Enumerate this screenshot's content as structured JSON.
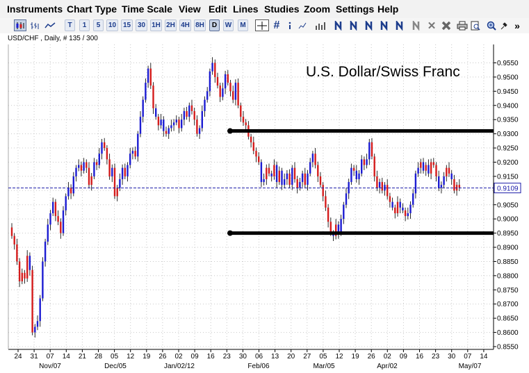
{
  "menu": [
    "Instruments",
    "Chart Type",
    "Time Scale",
    "View",
    "Edit",
    "Lines",
    "Studies",
    "Zoom",
    "Settings",
    "Help"
  ],
  "toolbar": {
    "timeframes": [
      "T",
      "1",
      "5",
      "10",
      "15",
      "30",
      "1H",
      "2H",
      "4H",
      "8H",
      "D",
      "W",
      "M"
    ],
    "active_timeframe": "D",
    "more": "»",
    "icons": [
      "candlestick-chart-icon",
      "bar-chart-icon",
      "line-chart-icon",
      "crosshair-icon",
      "grid-icon",
      "info-icon",
      "volume-icon",
      "draw-line-icon",
      "delete-icon",
      "print-icon",
      "print-preview-icon",
      "zoom-icon",
      "pin-icon"
    ]
  },
  "status": {
    "label": "USD/CHF , Daily, # 135 / 300"
  },
  "chart_data": {
    "type": "candlestick",
    "title": "U.S. Dollar/Swiss Franc",
    "colors": {
      "up": "#1c1cd2",
      "down": "#d41c1c",
      "wick": "#111111",
      "grid": "#c8c8c8",
      "axis": "#000000",
      "level": "#000000",
      "last_price": "#1a1aa8"
    },
    "yrange": [
      0.854,
      0.96
    ],
    "yticks": [
      "0.9550",
      "0.9500",
      "0.9450",
      "0.9400",
      "0.9350",
      "0.9300",
      "0.9250",
      "0.9200",
      "0.9150",
      "0.9100",
      "0.9050",
      "0.9000",
      "0.8950",
      "0.8900",
      "0.8850",
      "0.8800",
      "0.8750",
      "0.8700",
      "0.8650",
      "0.8600",
      "0.8550"
    ],
    "day_ticks": [
      "24",
      "31",
      "07",
      "14",
      "21",
      "28",
      "05",
      "12",
      "19",
      "26",
      "02",
      "09",
      "16",
      "23",
      "30",
      "06",
      "13",
      "20",
      "27",
      "05",
      "12",
      "19",
      "26",
      "02",
      "09",
      "16",
      "23",
      "30",
      "07",
      "14"
    ],
    "month_ticks": [
      "Nov/07",
      "Dec/05",
      "Jan/02/12",
      "Feb/06",
      "Mar/05",
      "Apr/02",
      "May/07"
    ],
    "last_price": "0.9109",
    "last_price_value": 0.9109,
    "support_resistance": [
      0.931,
      0.895
    ],
    "close": [
      0.894,
      0.891,
      0.885,
      0.878,
      0.881,
      0.879,
      0.887,
      0.882,
      0.86,
      0.862,
      0.864,
      0.872,
      0.885,
      0.892,
      0.898,
      0.902,
      0.906,
      0.901,
      0.899,
      0.895,
      0.903,
      0.908,
      0.911,
      0.909,
      0.915,
      0.918,
      0.919,
      0.917,
      0.92,
      0.918,
      0.912,
      0.915,
      0.92,
      0.919,
      0.923,
      0.927,
      0.925,
      0.921,
      0.915,
      0.918,
      0.908,
      0.911,
      0.914,
      0.918,
      0.915,
      0.919,
      0.923,
      0.924,
      0.922,
      0.93,
      0.936,
      0.942,
      0.948,
      0.953,
      0.947,
      0.939,
      0.936,
      0.933,
      0.935,
      0.931,
      0.93,
      0.932,
      0.933,
      0.934,
      0.935,
      0.932,
      0.935,
      0.938,
      0.936,
      0.94,
      0.938,
      0.935,
      0.93,
      0.932,
      0.938,
      0.942,
      0.945,
      0.952,
      0.955,
      0.95,
      0.947,
      0.943,
      0.946,
      0.951,
      0.948,
      0.945,
      0.942,
      0.948,
      0.94,
      0.936,
      0.934,
      0.933,
      0.929,
      0.927,
      0.924,
      0.922,
      0.92,
      0.913,
      0.914,
      0.918,
      0.916,
      0.915,
      0.919,
      0.913,
      0.917,
      0.912,
      0.914,
      0.916,
      0.912,
      0.918,
      0.914,
      0.911,
      0.913,
      0.916,
      0.912,
      0.916,
      0.92,
      0.923,
      0.919,
      0.915,
      0.912,
      0.908,
      0.904,
      0.899,
      0.895,
      0.894,
      0.898,
      0.895,
      0.9,
      0.905,
      0.909,
      0.913,
      0.918,
      0.917,
      0.914,
      0.916,
      0.921,
      0.919,
      0.921,
      0.927,
      0.922,
      0.915,
      0.911,
      0.913,
      0.91,
      0.912,
      0.908,
      0.906,
      0.904,
      0.902,
      0.906,
      0.904,
      0.903,
      0.901,
      0.902,
      0.905,
      0.909,
      0.916,
      0.918,
      0.92,
      0.917,
      0.919,
      0.916,
      0.92,
      0.919,
      0.915,
      0.911,
      0.912,
      0.915,
      0.918,
      0.916,
      0.914,
      0.91,
      0.912,
      0.911
    ],
    "up_candles": [
      7,
      9,
      10,
      11,
      12,
      13,
      14,
      15,
      16,
      20,
      21,
      22,
      24,
      25,
      26,
      28,
      32,
      34,
      35,
      39,
      42,
      43,
      45,
      46,
      47,
      49,
      50,
      51,
      52,
      53,
      56,
      58,
      59,
      61,
      62,
      63,
      64,
      66,
      67,
      69,
      73,
      74,
      75,
      76,
      77,
      78,
      82,
      83,
      87,
      97,
      98,
      101,
      103,
      105,
      106,
      107,
      109,
      112,
      113,
      115,
      116,
      117,
      125,
      127,
      128,
      129,
      130,
      131,
      132,
      134,
      135,
      136,
      138,
      139,
      143,
      145,
      148,
      151,
      152,
      154,
      155,
      156,
      157,
      158,
      160,
      162,
      166,
      167,
      168,
      171
    ],
    "high_extend": [
      0.0015,
      0.001,
      0.002,
      0.0012
    ],
    "low_extend": [
      0.001,
      0.0018,
      0.0012,
      0.002
    ]
  }
}
